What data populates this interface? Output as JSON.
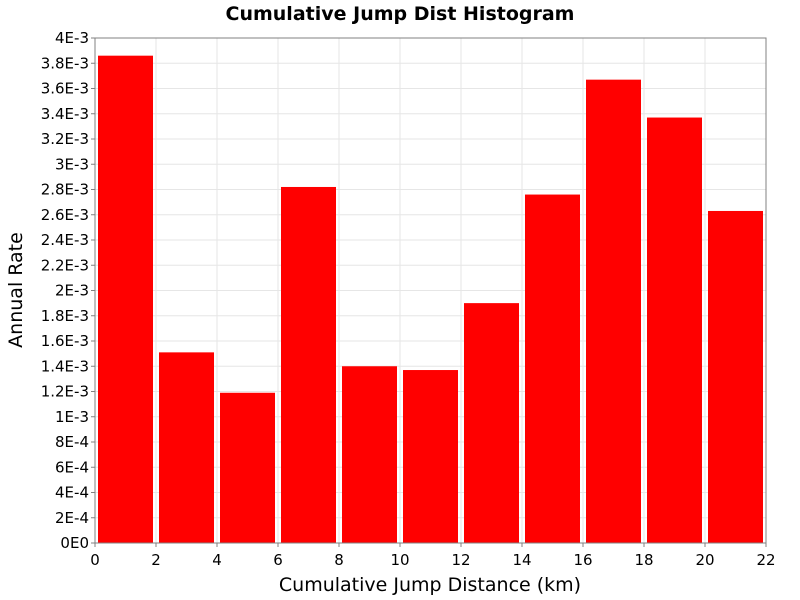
{
  "chart_data": {
    "type": "bar",
    "title": "Cumulative Jump Dist Histogram",
    "xlabel": "Cumulative Jump Distance (km)",
    "ylabel": "Annual Rate",
    "xlim": [
      0,
      22
    ],
    "ylim": [
      0,
      0.004
    ],
    "x_ticks": [
      0,
      2,
      4,
      6,
      8,
      10,
      12,
      14,
      16,
      18,
      20,
      22
    ],
    "x_tick_labels": [
      "0",
      "2",
      "4",
      "6",
      "8",
      "10",
      "12",
      "14",
      "16",
      "18",
      "20",
      "22"
    ],
    "y_ticks": [
      0,
      0.0002,
      0.0004,
      0.0006,
      0.0008,
      0.001,
      0.0012,
      0.0014,
      0.0016,
      0.0018,
      0.002,
      0.0022,
      0.0024,
      0.0026,
      0.0028,
      0.003,
      0.0032,
      0.0034,
      0.0036,
      0.0038,
      0.004
    ],
    "y_tick_labels": [
      "0E0",
      "2E-4",
      "4E-4",
      "6E-4",
      "8E-4",
      "1E-3",
      "1.2E-3",
      "1.4E-3",
      "1.6E-3",
      "1.8E-3",
      "2E-3",
      "2.2E-3",
      "2.4E-3",
      "2.6E-3",
      "2.8E-3",
      "3E-3",
      "3.2E-3",
      "3.4E-3",
      "3.6E-3",
      "3.8E-3",
      "4E-3"
    ],
    "grid": true,
    "bin_width": 2,
    "bars": [
      {
        "x": 1,
        "value": 0.00386
      },
      {
        "x": 3,
        "value": 0.00151
      },
      {
        "x": 5,
        "value": 0.00119
      },
      {
        "x": 7,
        "value": 0.00282
      },
      {
        "x": 9,
        "value": 0.0014
      },
      {
        "x": 11,
        "value": 0.00137
      },
      {
        "x": 13,
        "value": 0.0019
      },
      {
        "x": 15,
        "value": 0.00276
      },
      {
        "x": 17,
        "value": 0.00367
      },
      {
        "x": 19,
        "value": 0.00337
      },
      {
        "x": 21,
        "value": 0.00263
      }
    ],
    "bar_color": "#ff0000",
    "grid_color": "#e6e6e6",
    "plot_background": "#ffffff"
  }
}
